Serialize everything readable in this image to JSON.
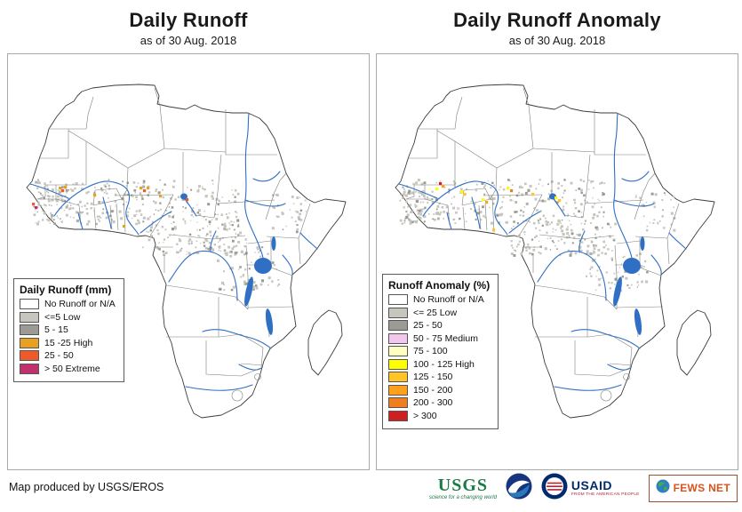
{
  "panels": {
    "left": {
      "title": "Daily Runoff",
      "subtitle": "as of 30 Aug. 2018",
      "legend_title": "Daily Runoff (mm)",
      "legend_items": [
        {
          "color": "#ffffff",
          "label": "No Runoff or N/A"
        },
        {
          "color": "#c6c6be",
          "label": "<=5 Low"
        },
        {
          "color": "#9b9b93",
          "label": "5 - 15"
        },
        {
          "color": "#e8a020",
          "label": "15 -25 High"
        },
        {
          "color": "#f05a28",
          "label": "25 - 50"
        },
        {
          "color": "#c2316e",
          "label": "> 50 Extreme"
        }
      ]
    },
    "right": {
      "title": "Daily Runoff Anomaly",
      "subtitle": "as of 30 Aug. 2018",
      "legend_title": "Runoff Anomaly (%)",
      "legend_items": [
        {
          "color": "#ffffff",
          "label": "No Runoff or N/A"
        },
        {
          "color": "#c6c6be",
          "label": "<= 25 Low"
        },
        {
          "color": "#9b9b93",
          "label": "25 - 50"
        },
        {
          "color": "#f2c7ee",
          "label": "50 - 75 Medium"
        },
        {
          "color": "#ffffc2",
          "label": "75 - 100"
        },
        {
          "color": "#fdff00",
          "label": "100 - 125 High"
        },
        {
          "color": "#ffc425",
          "label": "125 - 150"
        },
        {
          "color": "#ffa01e",
          "label": "150 - 200"
        },
        {
          "color": "#f07d1e",
          "label": "200 - 300"
        },
        {
          "color": "#cf2020",
          "label": "> 300"
        }
      ]
    }
  },
  "footer": {
    "credit": "Map produced by USGS/EROS"
  },
  "logos": {
    "usgs": {
      "name": "USGS",
      "tagline": "science for a changing world"
    },
    "usaid": {
      "name": "USAID",
      "tagline": "FROM THE AMERICAN PEOPLE"
    },
    "fewsnet": {
      "name": "FEWS NET"
    }
  }
}
